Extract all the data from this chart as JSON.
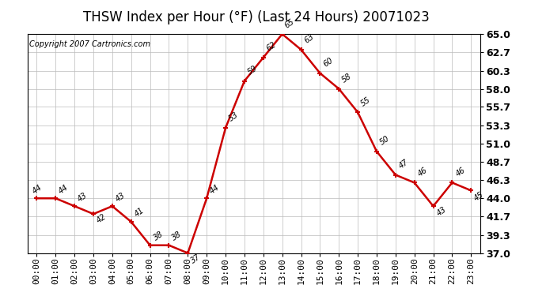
{
  "title": "THSW Index per Hour (°F) (Last 24 Hours) 20071023",
  "copyright_text": "Copyright 2007 Cartronics.com",
  "hours": [
    "00:00",
    "01:00",
    "02:00",
    "03:00",
    "04:00",
    "05:00",
    "06:00",
    "07:00",
    "08:00",
    "09:00",
    "10:00",
    "11:00",
    "12:00",
    "13:00",
    "14:00",
    "15:00",
    "16:00",
    "17:00",
    "18:00",
    "19:00",
    "20:00",
    "21:00",
    "22:00",
    "23:00"
  ],
  "values": [
    44,
    44,
    43,
    42,
    43,
    41,
    38,
    38,
    37,
    44,
    53,
    59,
    62,
    65,
    63,
    60,
    58,
    55,
    50,
    47,
    46,
    43,
    46,
    45
  ],
  "line_color": "#cc0000",
  "marker_color": "#cc0000",
  "bg_color": "#ffffff",
  "plot_bg_color": "#ffffff",
  "grid_color": "#bbbbbb",
  "ylim": [
    37.0,
    65.0
  ],
  "yticks": [
    37.0,
    39.3,
    41.7,
    44.0,
    46.3,
    48.7,
    51.0,
    53.3,
    55.7,
    58.0,
    60.3,
    62.7,
    65.0
  ],
  "title_fontsize": 12,
  "copyright_fontsize": 7,
  "label_fontsize": 7,
  "tick_fontsize": 8,
  "ytick_fontsize": 9
}
